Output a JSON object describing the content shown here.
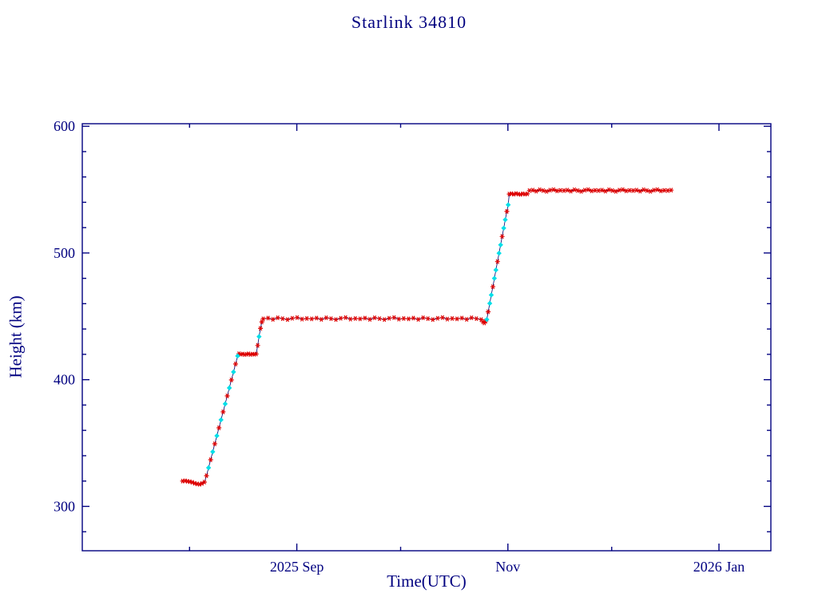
{
  "chart_data": {
    "type": "line",
    "title": "Starlink 34810",
    "xlabel": "Time(UTC)",
    "ylabel": "Height (km)",
    "x_unit": "days since 2025-07-01 (derived from visible tick labels)",
    "xlim": [
      0,
      199
    ],
    "ylim": [
      265,
      602
    ],
    "grid": false,
    "legend_position": "none",
    "x_ticks": [
      {
        "t": 62,
        "label": "2025 Sep"
      },
      {
        "t": 123,
        "label": "Nov"
      },
      {
        "t": 184,
        "label": "2026 Jan"
      }
    ],
    "x_minor": [
      31,
      92,
      153
    ],
    "y_ticks": [
      {
        "v": 300,
        "label": "300"
      },
      {
        "v": 400,
        "label": "400"
      },
      {
        "v": 500,
        "label": "500"
      },
      {
        "v": 600,
        "label": "600"
      }
    ],
    "y_minor": [
      280,
      320,
      340,
      360,
      380,
      420,
      440,
      460,
      480,
      520,
      540,
      560,
      580
    ],
    "colors": {
      "axis": "#000080",
      "line": "#00006b",
      "point": "#dd0000",
      "maneuver": "#00dfe8",
      "background": "#ffffff"
    },
    "marker_legend": {
      "0": "red asterisk (tracked height)",
      "1": "cyan diamond (maneuver point)"
    },
    "series": [
      {
        "name": "height",
        "points": [
          [
            29.0,
            320.0,
            0
          ],
          [
            29.7,
            320.2,
            0
          ],
          [
            30.4,
            319.8,
            0
          ],
          [
            31.1,
            319.5,
            0
          ],
          [
            31.8,
            319.0,
            0
          ],
          [
            32.5,
            318.2,
            0
          ],
          [
            33.2,
            317.7,
            0
          ],
          [
            33.9,
            317.5,
            0
          ],
          [
            34.6,
            318.1,
            0
          ],
          [
            35.3,
            319.2,
            0
          ],
          [
            35.9,
            324.2,
            0
          ],
          [
            36.5,
            330.5,
            1
          ],
          [
            37.1,
            336.8,
            0
          ],
          [
            37.7,
            343.1,
            1
          ],
          [
            38.3,
            349.4,
            0
          ],
          [
            38.9,
            355.7,
            1
          ],
          [
            39.5,
            362.0,
            0
          ],
          [
            40.1,
            368.3,
            1
          ],
          [
            40.7,
            374.6,
            0
          ],
          [
            41.3,
            380.9,
            1
          ],
          [
            41.9,
            387.2,
            0
          ],
          [
            42.5,
            393.5,
            1
          ],
          [
            43.1,
            399.8,
            0
          ],
          [
            43.7,
            406.1,
            1
          ],
          [
            44.3,
            412.4,
            0
          ],
          [
            44.9,
            418.7,
            1
          ],
          [
            45.3,
            420.5,
            0
          ],
          [
            45.85,
            420.0,
            0
          ],
          [
            46.4,
            420.3,
            0
          ],
          [
            46.95,
            419.8,
            0
          ],
          [
            47.5,
            420.1,
            0
          ],
          [
            48.05,
            420.4,
            0
          ],
          [
            48.6,
            419.9,
            0
          ],
          [
            49.15,
            420.2,
            0
          ],
          [
            49.7,
            420.0,
            0
          ],
          [
            50.25,
            420.3,
            0
          ],
          [
            50.7,
            427.0,
            0
          ],
          [
            51.1,
            434.0,
            1
          ],
          [
            51.5,
            440.5,
            0
          ],
          [
            51.9,
            445.5,
            0
          ],
          [
            52.3,
            448.0,
            0
          ],
          [
            53.7,
            448.6,
            0
          ],
          [
            55.1,
            447.6,
            0
          ],
          [
            56.5,
            448.9,
            0
          ],
          [
            57.9,
            448.2,
            0
          ],
          [
            59.3,
            447.4,
            0
          ],
          [
            60.7,
            448.5,
            0
          ],
          [
            62.1,
            449.0,
            0
          ],
          [
            63.5,
            447.8,
            0
          ],
          [
            64.9,
            448.3,
            0
          ],
          [
            66.3,
            448.0,
            0
          ],
          [
            67.7,
            448.6,
            0
          ],
          [
            69.1,
            447.6,
            0
          ],
          [
            70.5,
            448.9,
            0
          ],
          [
            71.9,
            448.2,
            0
          ],
          [
            73.3,
            447.4,
            0
          ],
          [
            74.7,
            448.5,
            0
          ],
          [
            76.1,
            449.0,
            0
          ],
          [
            77.5,
            447.8,
            0
          ],
          [
            78.9,
            448.3,
            0
          ],
          [
            80.3,
            448.0,
            0
          ],
          [
            81.7,
            448.6,
            0
          ],
          [
            83.1,
            447.6,
            0
          ],
          [
            84.5,
            448.9,
            0
          ],
          [
            85.9,
            448.2,
            0
          ],
          [
            87.3,
            447.4,
            0
          ],
          [
            88.7,
            448.5,
            0
          ],
          [
            90.1,
            449.0,
            0
          ],
          [
            91.5,
            447.8,
            0
          ],
          [
            92.9,
            448.3,
            0
          ],
          [
            94.3,
            448.0,
            0
          ],
          [
            95.7,
            448.6,
            0
          ],
          [
            97.1,
            447.6,
            0
          ],
          [
            98.5,
            448.9,
            0
          ],
          [
            99.9,
            448.2,
            0
          ],
          [
            101.3,
            447.4,
            0
          ],
          [
            102.7,
            448.5,
            0
          ],
          [
            104.1,
            449.0,
            0
          ],
          [
            105.5,
            447.8,
            0
          ],
          [
            106.9,
            448.3,
            0
          ],
          [
            108.3,
            448.0,
            0
          ],
          [
            109.7,
            448.6,
            0
          ],
          [
            111.1,
            447.6,
            0
          ],
          [
            112.5,
            448.9,
            0
          ],
          [
            113.9,
            448.2,
            0
          ],
          [
            115.3,
            447.4,
            0
          ],
          [
            115.8,
            445.6,
            0
          ],
          [
            116.2,
            444.8,
            0
          ],
          [
            116.6,
            446.2,
            0
          ],
          [
            116.9,
            447.5,
            1
          ],
          [
            117.3,
            453.6,
            0
          ],
          [
            117.75,
            460.2,
            1
          ],
          [
            118.2,
            466.8,
            1
          ],
          [
            118.65,
            473.4,
            0
          ],
          [
            119.1,
            480.0,
            1
          ],
          [
            119.55,
            486.6,
            1
          ],
          [
            120.0,
            493.2,
            0
          ],
          [
            120.45,
            499.8,
            1
          ],
          [
            120.9,
            506.4,
            1
          ],
          [
            121.35,
            513.0,
            0
          ],
          [
            121.8,
            519.6,
            1
          ],
          [
            122.25,
            526.2,
            1
          ],
          [
            122.7,
            532.8,
            0
          ],
          [
            123.1,
            538.0,
            1
          ],
          [
            123.4,
            546.5,
            0
          ],
          [
            124.05,
            546.8,
            0
          ],
          [
            124.7,
            546.3,
            0
          ],
          [
            125.35,
            546.9,
            0
          ],
          [
            126.0,
            546.5,
            0
          ],
          [
            126.65,
            546.2,
            0
          ],
          [
            127.3,
            546.7,
            0
          ],
          [
            127.95,
            546.4,
            0
          ],
          [
            128.6,
            546.6,
            0
          ],
          [
            129.2,
            549.2,
            0
          ],
          [
            130.2,
            549.6,
            0
          ],
          [
            131.2,
            548.8,
            0
          ],
          [
            132.2,
            549.9,
            0
          ],
          [
            133.2,
            549.3,
            0
          ],
          [
            134.2,
            548.6,
            0
          ],
          [
            135.2,
            549.5,
            0
          ],
          [
            136.2,
            550.0,
            0
          ],
          [
            137.2,
            549.0,
            0
          ],
          [
            138.2,
            549.4,
            0
          ],
          [
            139.2,
            549.2,
            0
          ],
          [
            140.2,
            549.6,
            0
          ],
          [
            141.2,
            548.8,
            0
          ],
          [
            142.2,
            549.9,
            0
          ],
          [
            143.2,
            549.3,
            0
          ],
          [
            144.2,
            548.6,
            0
          ],
          [
            145.2,
            549.5,
            0
          ],
          [
            146.2,
            550.0,
            0
          ],
          [
            147.2,
            549.0,
            0
          ],
          [
            148.2,
            549.4,
            0
          ],
          [
            149.2,
            549.2,
            0
          ],
          [
            150.2,
            549.6,
            0
          ],
          [
            151.2,
            548.8,
            0
          ],
          [
            152.2,
            549.9,
            0
          ],
          [
            153.2,
            549.3,
            0
          ],
          [
            154.2,
            548.6,
            0
          ],
          [
            155.2,
            549.5,
            0
          ],
          [
            156.2,
            550.0,
            0
          ],
          [
            157.2,
            549.0,
            0
          ],
          [
            158.2,
            549.4,
            0
          ],
          [
            159.2,
            549.2,
            0
          ],
          [
            160.2,
            549.6,
            0
          ],
          [
            161.2,
            548.8,
            0
          ],
          [
            162.2,
            549.9,
            0
          ],
          [
            163.2,
            549.3,
            0
          ],
          [
            164.2,
            548.6,
            0
          ],
          [
            165.2,
            549.5,
            0
          ],
          [
            166.2,
            550.0,
            0
          ],
          [
            167.2,
            549.0,
            0
          ],
          [
            168.2,
            549.4,
            0
          ],
          [
            169.2,
            549.2,
            0
          ],
          [
            170.2,
            549.6,
            0
          ]
        ]
      }
    ]
  }
}
